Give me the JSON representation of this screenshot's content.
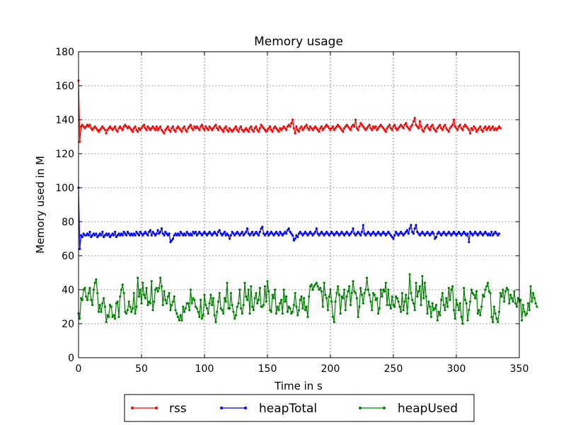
{
  "chart_data": {
    "type": "line",
    "title": "Memory usage",
    "xlabel": "Time in s",
    "ylabel": "Memory used in M",
    "xlim": [
      0,
      350
    ],
    "ylim": [
      0,
      180
    ],
    "xticks": [
      0,
      50,
      100,
      150,
      200,
      250,
      300,
      350
    ],
    "yticks": [
      0,
      20,
      40,
      60,
      80,
      100,
      120,
      140,
      160,
      180
    ],
    "grid": true,
    "legend_position": "bottom-center",
    "x_step": 1.0,
    "series": [
      {
        "name": "rss",
        "color": "#ff0000",
        "values": [
          163,
          127,
          136,
          137,
          136,
          135,
          136,
          137,
          136,
          137,
          135,
          134,
          135,
          136,
          135,
          134,
          133,
          134,
          135,
          136,
          135,
          134,
          132,
          134,
          135,
          136,
          135,
          134,
          135,
          136,
          134,
          133,
          135,
          136,
          135,
          134,
          136,
          137,
          136,
          135,
          136,
          135,
          134,
          133,
          135,
          136,
          134,
          133,
          135,
          134,
          135,
          136,
          137,
          135,
          134,
          136,
          135,
          134,
          135,
          136,
          135,
          134,
          136,
          134,
          135,
          136,
          134,
          133,
          132,
          134,
          135,
          136,
          134,
          133,
          135,
          136,
          134,
          133,
          135,
          136,
          135,
          134,
          133,
          135,
          136,
          134,
          133,
          135,
          136,
          137,
          135,
          134,
          136,
          135,
          136,
          135,
          134,
          136,
          137,
          135,
          134,
          136,
          135,
          134,
          136,
          135,
          134,
          135,
          136,
          137,
          135,
          134,
          136,
          135,
          134,
          133,
          135,
          136,
          134,
          133,
          135,
          134,
          133,
          134,
          135,
          136,
          134,
          133,
          135,
          136,
          134,
          133,
          134,
          135,
          134,
          133,
          135,
          136,
          134,
          133,
          135,
          136,
          134,
          133,
          135,
          137,
          136,
          135,
          134,
          133,
          134,
          135,
          136,
          134,
          133,
          135,
          136,
          135,
          134,
          133,
          135,
          134,
          135,
          136,
          135,
          134,
          136,
          137,
          136,
          138,
          140,
          135,
          132,
          136,
          134,
          133,
          135,
          136,
          134,
          135,
          136,
          137,
          135,
          134,
          136,
          135,
          134,
          135,
          136,
          135,
          134,
          133,
          135,
          136,
          134,
          135,
          136,
          137,
          136,
          135,
          134,
          135,
          136,
          134,
          135,
          136,
          137,
          136,
          135,
          134,
          133,
          135,
          136,
          137,
          136,
          135,
          134,
          136,
          137,
          136,
          140,
          135,
          134,
          136,
          138,
          137,
          136,
          135,
          134,
          135,
          136,
          137,
          135,
          134,
          136,
          135,
          136,
          134,
          135,
          136,
          137,
          136,
          135,
          134,
          133,
          135,
          136,
          137,
          135,
          134,
          136,
          137,
          135,
          134,
          135,
          136,
          137,
          136,
          135,
          137,
          138,
          136,
          135,
          134,
          136,
          137,
          139,
          141,
          137,
          136,
          135,
          139,
          136,
          134,
          133,
          135,
          136,
          137,
          135,
          134,
          136,
          137,
          135,
          134,
          133,
          135,
          136,
          137,
          135,
          134,
          136,
          137,
          135,
          134,
          133,
          135,
          136,
          137,
          140,
          136,
          135,
          134,
          136,
          137,
          135,
          134,
          136,
          137,
          136,
          135,
          134,
          132,
          135,
          134,
          136,
          135,
          133,
          134,
          135,
          136,
          134,
          133,
          135,
          136,
          134,
          135,
          136,
          134,
          135,
          136,
          134,
          135,
          134,
          135,
          136,
          135
        ]
      },
      {
        "name": "heapTotal",
        "color": "#0000ff",
        "values": [
          100,
          64,
          72,
          71,
          73,
          72,
          72,
          73,
          72,
          74,
          71,
          72,
          73,
          72,
          73,
          71,
          72,
          73,
          72,
          74,
          71,
          72,
          73,
          72,
          73,
          71,
          72,
          73,
          72,
          74,
          71,
          72,
          73,
          72,
          73,
          72,
          74,
          73,
          72,
          74,
          73,
          72,
          73,
          72,
          73,
          72,
          74,
          73,
          72,
          74,
          73,
          72,
          73,
          74,
          73,
          72,
          74,
          75,
          72,
          74,
          73,
          72,
          73,
          75,
          73,
          74,
          76,
          73,
          72,
          74,
          73,
          72,
          73,
          68,
          69,
          70,
          72,
          73,
          72,
          73,
          72,
          74,
          73,
          72,
          73,
          72,
          74,
          73,
          72,
          73,
          72,
          74,
          73,
          74,
          72,
          73,
          74,
          73,
          72,
          73,
          74,
          73,
          72,
          73,
          74,
          73,
          72,
          73,
          74,
          73,
          72,
          74,
          75,
          73,
          72,
          73,
          74,
          72,
          73,
          72,
          70,
          72,
          74,
          73,
          72,
          73,
          74,
          73,
          72,
          73,
          74,
          72,
          73,
          74,
          76,
          73,
          72,
          73,
          74,
          72,
          73,
          74,
          73,
          72,
          74,
          76,
          77,
          73,
          72,
          73,
          74,
          72,
          73,
          74,
          73,
          72,
          73,
          74,
          73,
          72,
          74,
          73,
          72,
          73,
          74,
          73,
          75,
          76,
          74,
          73,
          72,
          69,
          70,
          72,
          71,
          73,
          74,
          73,
          72,
          73,
          74,
          73,
          72,
          73,
          74,
          73,
          72,
          73,
          74,
          76,
          73,
          72,
          73,
          74,
          73,
          72,
          73,
          74,
          73,
          72,
          73,
          74,
          73,
          72,
          73,
          74,
          73,
          72,
          73,
          74,
          73,
          72,
          73,
          74,
          73,
          72,
          73,
          74,
          76,
          73,
          72,
          73,
          74,
          73,
          72,
          74,
          78,
          73,
          72,
          73,
          74,
          73,
          72,
          73,
          74,
          73,
          72,
          73,
          74,
          73,
          72,
          73,
          74,
          73,
          72,
          73,
          74,
          73,
          72,
          71,
          70,
          72,
          74,
          73,
          72,
          73,
          74,
          73,
          72,
          73,
          74,
          75,
          73,
          76,
          78,
          74,
          73,
          76,
          78,
          74,
          73,
          72,
          73,
          74,
          73,
          72,
          73,
          74,
          73,
          72,
          73,
          74,
          73,
          70,
          71,
          73,
          74,
          73,
          72,
          73,
          74,
          73,
          72,
          73,
          74,
          73,
          72,
          73,
          74,
          73,
          72,
          73,
          74,
          73,
          72,
          73,
          74,
          73,
          72,
          73,
          68,
          74,
          73,
          72,
          73,
          74,
          73,
          72,
          73,
          74,
          73,
          72,
          73,
          74,
          73,
          72,
          73,
          72,
          74,
          72,
          73,
          74,
          73,
          72,
          73
        ]
      },
      {
        "name": "heapUsed",
        "color": "#008000",
        "values": [
          26,
          23,
          35,
          34,
          40,
          41,
          36,
          34,
          38,
          41,
          34,
          31,
          40,
          44,
          46,
          38,
          27,
          31,
          27,
          32,
          35,
          30,
          21,
          25,
          24,
          31,
          30,
          24,
          25,
          23,
          32,
          33,
          24,
          36,
          40,
          43,
          38,
          27,
          26,
          28,
          33,
          30,
          27,
          29,
          38,
          26,
          30,
          47,
          36,
          40,
          32,
          44,
          37,
          35,
          41,
          31,
          33,
          32,
          45,
          28,
          33,
          40,
          41,
          39,
          41,
          47,
          42,
          31,
          39,
          34,
          32,
          36,
          38,
          28,
          31,
          33,
          36,
          28,
          26,
          24,
          22,
          25,
          22,
          30,
          27,
          29,
          32,
          32,
          28,
          40,
          32,
          35,
          34,
          30,
          29,
          27,
          24,
          34,
          23,
          25,
          37,
          31,
          29,
          26,
          32,
          37,
          31,
          35,
          25,
          21,
          27,
          33,
          38,
          29,
          28,
          26,
          35,
          33,
          44,
          29,
          29,
          38,
          31,
          27,
          23,
          25,
          30,
          32,
          40,
          29,
          26,
          31,
          44,
          36,
          34,
          40,
          26,
          42,
          30,
          28,
          35,
          38,
          32,
          34,
          41,
          30,
          30,
          31,
          42,
          33,
          45,
          39,
          28,
          27,
          37,
          35,
          40,
          26,
          30,
          28,
          32,
          34,
          26,
          40,
          33,
          36,
          27,
          30,
          29,
          26,
          27,
          31,
          38,
          30,
          25,
          28,
          34,
          36,
          29,
          35,
          28,
          30,
          24,
          36,
          42,
          43,
          40,
          42,
          43,
          44,
          42,
          40,
          41,
          39,
          30,
          44,
          37,
          35,
          28,
          36,
          40,
          33,
          24,
          21,
          33,
          38,
          42,
          37,
          26,
          36,
          35,
          40,
          28,
          36,
          39,
          42,
          31,
          38,
          45,
          39,
          38,
          35,
          24,
          30,
          41,
          37,
          32,
          38,
          40,
          47,
          40,
          37,
          33,
          28,
          38,
          37,
          34,
          35,
          26,
          29,
          40,
          36,
          40,
          39,
          44,
          31,
          40,
          31,
          29,
          36,
          31,
          30,
          36,
          35,
          33,
          30,
          27,
          38,
          28,
          33,
          37,
          26,
          35,
          49,
          38,
          34,
          32,
          28,
          44,
          36,
          39,
          42,
          31,
          48,
          35,
          44,
          36,
          26,
          33,
          30,
          24,
          32,
          28,
          29,
          31,
          22,
          27,
          25,
          34,
          38,
          31,
          28,
          35,
          30,
          41,
          34,
          40,
          42,
          28,
          23,
          34,
          31,
          28,
          32,
          24,
          20,
          41,
          34,
          32,
          22,
          28,
          33,
          40,
          38,
          37,
          35,
          39,
          26,
          28,
          25,
          30,
          37,
          36,
          40,
          42,
          44,
          39,
          38,
          24,
          21,
          30,
          26,
          23,
          21,
          27,
          38,
          36,
          40,
          33,
          39,
          41,
          40,
          32,
          37,
          35,
          33,
          39,
          32,
          30,
          35,
          33,
          34,
          22,
          31,
          27,
          25,
          26,
          32,
          28,
          42,
          33,
          38,
          35,
          32,
          30
        ]
      }
    ]
  }
}
